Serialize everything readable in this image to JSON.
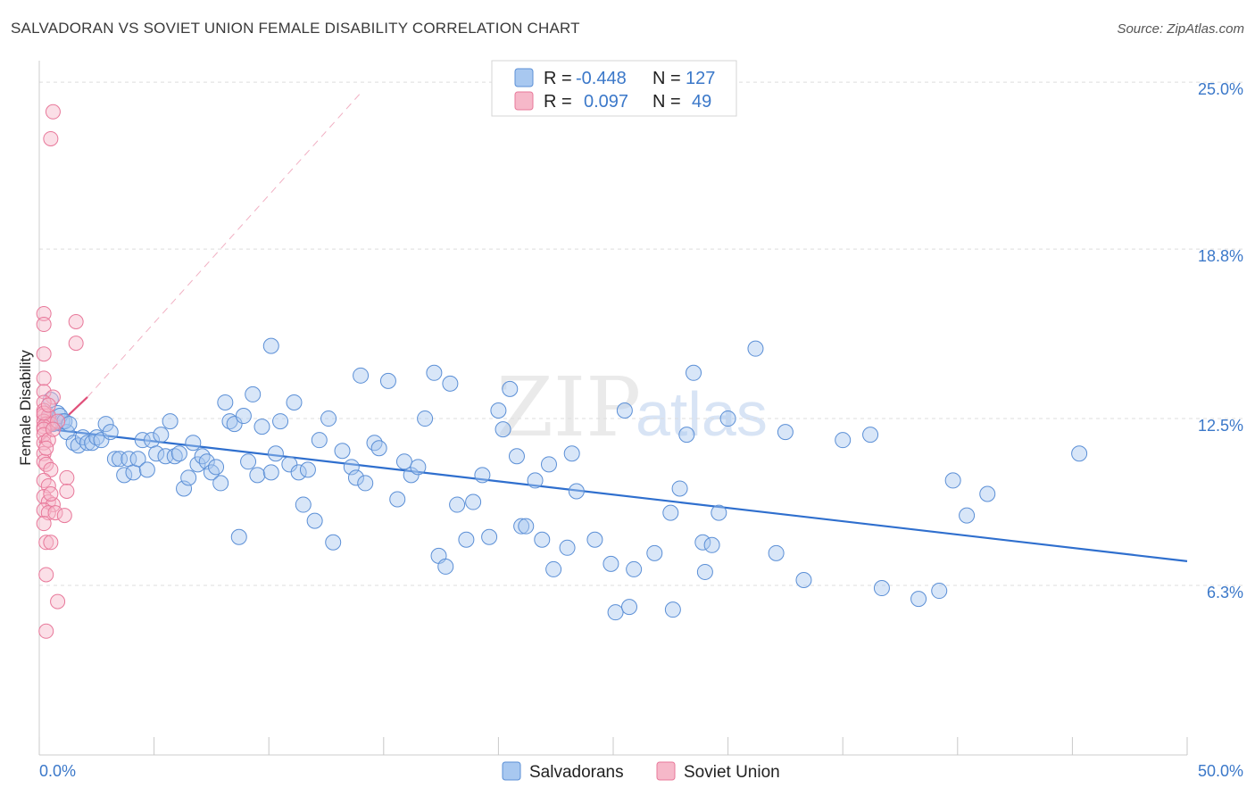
{
  "chart_data": {
    "type": "scatter",
    "title": "SALVADORAN VS SOVIET UNION FEMALE DISABILITY CORRELATION CHART",
    "source": "Source: ZipAtlas.com",
    "ylabel": "Female Disability",
    "xlabel": "",
    "xlim": [
      0,
      50
    ],
    "ylim": [
      0,
      25.8
    ],
    "x_tick_labels": [
      "0.0%",
      "50.0%"
    ],
    "y_ticks": [
      {
        "value": 6.3,
        "label": "6.3%"
      },
      {
        "value": 12.5,
        "label": "12.5%"
      },
      {
        "value": 18.8,
        "label": "18.8%"
      },
      {
        "value": 25.0,
        "label": "25.0%"
      }
    ],
    "legend": {
      "rows": [
        {
          "r_label": "R =",
          "r_value": "-0.448",
          "n_label": "N =",
          "n_value": "127"
        },
        {
          "r_label": "R =",
          "r_value": "0.097",
          "n_label": "N =",
          "n_value": "49"
        }
      ]
    },
    "watermark": {
      "zip": "ZIP",
      "atlas": "atlas"
    },
    "colors": {
      "blue_fill": "#a8c8f0",
      "blue_stroke": "#5b8fd6",
      "blue_line": "#2f6fce",
      "pink_fill": "#f6b8c9",
      "pink_stroke": "#e8789a",
      "pink_line": "#e0507a"
    },
    "series": [
      {
        "name": "Salvadorans",
        "color": "#a8c8f0",
        "trend": {
          "x0": 0.5,
          "y0": 12.1,
          "x1": 50,
          "y1": 7.2
        },
        "points": [
          [
            0.4,
            12.5
          ],
          [
            0.6,
            12.3
          ],
          [
            0.8,
            12.7
          ],
          [
            1.0,
            12.4
          ],
          [
            1.2,
            12.0
          ],
          [
            0.5,
            13.2
          ],
          [
            0.9,
            12.6
          ],
          [
            1.1,
            12.4
          ],
          [
            1.3,
            12.3
          ],
          [
            1.5,
            11.6
          ],
          [
            1.7,
            11.5
          ],
          [
            1.9,
            11.8
          ],
          [
            2.1,
            11.6
          ],
          [
            2.3,
            11.6
          ],
          [
            2.5,
            11.8
          ],
          [
            2.7,
            11.7
          ],
          [
            2.9,
            12.3
          ],
          [
            3.1,
            12.0
          ],
          [
            3.3,
            11.0
          ],
          [
            3.5,
            11.0
          ],
          [
            3.7,
            10.4
          ],
          [
            3.9,
            11.0
          ],
          [
            4.1,
            10.5
          ],
          [
            4.3,
            11.0
          ],
          [
            4.5,
            11.7
          ],
          [
            4.7,
            10.6
          ],
          [
            4.9,
            11.7
          ],
          [
            5.1,
            11.2
          ],
          [
            5.3,
            11.9
          ],
          [
            5.5,
            11.1
          ],
          [
            5.7,
            12.4
          ],
          [
            5.9,
            11.1
          ],
          [
            6.1,
            11.2
          ],
          [
            6.3,
            9.9
          ],
          [
            6.5,
            10.3
          ],
          [
            6.7,
            11.6
          ],
          [
            6.9,
            10.8
          ],
          [
            7.1,
            11.1
          ],
          [
            7.3,
            10.9
          ],
          [
            7.5,
            10.5
          ],
          [
            7.7,
            10.7
          ],
          [
            7.9,
            10.1
          ],
          [
            8.1,
            13.1
          ],
          [
            8.3,
            12.4
          ],
          [
            8.5,
            12.3
          ],
          [
            8.7,
            8.1
          ],
          [
            8.9,
            12.6
          ],
          [
            9.1,
            10.9
          ],
          [
            9.3,
            13.4
          ],
          [
            9.5,
            10.4
          ],
          [
            9.7,
            12.2
          ],
          [
            10.1,
            10.5
          ],
          [
            10.3,
            11.2
          ],
          [
            10.5,
            12.4
          ],
          [
            10.1,
            15.2
          ],
          [
            10.9,
            10.8
          ],
          [
            11.1,
            13.1
          ],
          [
            11.3,
            10.5
          ],
          [
            11.5,
            9.3
          ],
          [
            11.7,
            10.6
          ],
          [
            12.0,
            8.7
          ],
          [
            12.2,
            11.7
          ],
          [
            12.6,
            12.5
          ],
          [
            12.8,
            7.9
          ],
          [
            13.2,
            11.3
          ],
          [
            13.6,
            10.7
          ],
          [
            13.8,
            10.3
          ],
          [
            14.0,
            14.1
          ],
          [
            14.2,
            10.1
          ],
          [
            14.6,
            11.6
          ],
          [
            14.8,
            11.4
          ],
          [
            15.2,
            13.9
          ],
          [
            15.6,
            9.5
          ],
          [
            15.9,
            10.9
          ],
          [
            16.2,
            10.4
          ],
          [
            16.5,
            10.7
          ],
          [
            16.8,
            12.5
          ],
          [
            17.2,
            14.2
          ],
          [
            17.4,
            7.4
          ],
          [
            17.7,
            7.0
          ],
          [
            17.9,
            13.8
          ],
          [
            18.2,
            9.3
          ],
          [
            18.6,
            8.0
          ],
          [
            18.9,
            9.4
          ],
          [
            19.3,
            10.4
          ],
          [
            19.6,
            8.1
          ],
          [
            20.0,
            12.8
          ],
          [
            20.2,
            12.1
          ],
          [
            20.5,
            13.6
          ],
          [
            20.8,
            11.1
          ],
          [
            21.0,
            8.5
          ],
          [
            21.2,
            8.5
          ],
          [
            21.6,
            10.2
          ],
          [
            21.9,
            8.0
          ],
          [
            22.2,
            10.8
          ],
          [
            22.4,
            6.9
          ],
          [
            23.0,
            7.7
          ],
          [
            23.2,
            11.2
          ],
          [
            23.4,
            9.8
          ],
          [
            24.2,
            8.0
          ],
          [
            24.9,
            7.1
          ],
          [
            25.1,
            5.3
          ],
          [
            25.5,
            12.8
          ],
          [
            25.7,
            5.5
          ],
          [
            25.9,
            6.9
          ],
          [
            26.8,
            7.5
          ],
          [
            27.5,
            9.0
          ],
          [
            27.6,
            5.4
          ],
          [
            27.9,
            9.9
          ],
          [
            28.2,
            11.9
          ],
          [
            28.5,
            14.2
          ],
          [
            28.9,
            7.9
          ],
          [
            29.0,
            6.8
          ],
          [
            29.3,
            7.8
          ],
          [
            29.6,
            9.0
          ],
          [
            30.0,
            12.5
          ],
          [
            31.2,
            15.1
          ],
          [
            32.1,
            7.5
          ],
          [
            32.5,
            12.0
          ],
          [
            33.3,
            6.5
          ],
          [
            35.0,
            11.7
          ],
          [
            36.2,
            11.9
          ],
          [
            36.7,
            6.2
          ],
          [
            38.3,
            5.8
          ],
          [
            39.2,
            6.1
          ],
          [
            39.8,
            10.2
          ],
          [
            40.4,
            8.9
          ],
          [
            41.3,
            9.7
          ],
          [
            45.3,
            11.2
          ]
        ]
      },
      {
        "name": "Soviet Union",
        "color": "#f6b8c9",
        "trend": {
          "x0": 0.0,
          "y0": 11.6,
          "x1": 2.1,
          "y1": 13.3
        },
        "trend_extension": {
          "x0": 2.1,
          "y0": 13.3,
          "x1": 14.0,
          "y1": 24.6
        },
        "points": [
          [
            0.6,
            23.9
          ],
          [
            0.5,
            22.9
          ],
          [
            0.2,
            16.4
          ],
          [
            0.2,
            16.0
          ],
          [
            1.6,
            16.1
          ],
          [
            1.6,
            15.3
          ],
          [
            0.2,
            14.9
          ],
          [
            0.2,
            14.0
          ],
          [
            0.2,
            13.5
          ],
          [
            0.6,
            13.3
          ],
          [
            0.2,
            13.1
          ],
          [
            0.2,
            12.8
          ],
          [
            0.2,
            12.6
          ],
          [
            0.4,
            12.6
          ],
          [
            0.2,
            12.4
          ],
          [
            0.3,
            12.3
          ],
          [
            0.5,
            12.3
          ],
          [
            0.2,
            12.2
          ],
          [
            0.8,
            12.4
          ],
          [
            0.2,
            12.1
          ],
          [
            0.2,
            11.9
          ],
          [
            0.2,
            11.6
          ],
          [
            0.4,
            11.7
          ],
          [
            0.2,
            11.2
          ],
          [
            0.2,
            10.9
          ],
          [
            0.3,
            10.8
          ],
          [
            0.5,
            10.6
          ],
          [
            1.2,
            10.3
          ],
          [
            0.2,
            10.2
          ],
          [
            0.4,
            10.0
          ],
          [
            1.2,
            9.8
          ],
          [
            0.2,
            9.6
          ],
          [
            0.4,
            9.4
          ],
          [
            0.6,
            9.3
          ],
          [
            0.2,
            9.1
          ],
          [
            0.4,
            9.0
          ],
          [
            0.7,
            9.0
          ],
          [
            1.1,
            8.9
          ],
          [
            0.3,
            7.9
          ],
          [
            0.5,
            7.9
          ],
          [
            0.3,
            6.7
          ],
          [
            0.8,
            5.7
          ],
          [
            0.3,
            4.6
          ],
          [
            0.2,
            12.7
          ],
          [
            0.4,
            13.0
          ],
          [
            0.6,
            12.1
          ],
          [
            0.3,
            11.4
          ],
          [
            0.5,
            9.7
          ],
          [
            0.2,
            8.6
          ]
        ]
      }
    ]
  }
}
